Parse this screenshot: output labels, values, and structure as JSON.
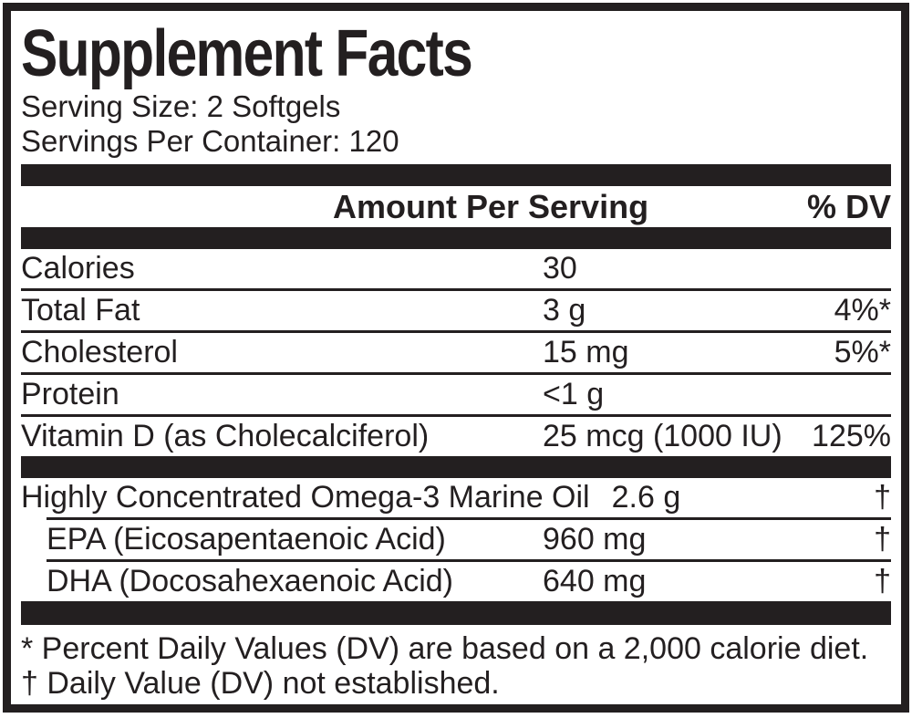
{
  "label": {
    "title": "Supplement Facts",
    "serving_size": "Serving Size: 2 Softgels",
    "servings_per_container": "Servings Per Container: 120",
    "columns": {
      "amount": "Amount Per Serving",
      "dv": "% DV"
    },
    "rows": [
      {
        "name": "Calories",
        "amount": "30",
        "dv": ""
      },
      {
        "name": "Total Fat",
        "amount": "3 g",
        "dv": "4%*"
      },
      {
        "name": "Cholesterol",
        "amount": "15 mg",
        "dv": "5%*"
      },
      {
        "name": "Protein",
        "amount": "<1 g",
        "dv": ""
      },
      {
        "name": "Vitamin D (as Cholecalciferol)",
        "amount": "25 mcg (1000 IU)",
        "dv": "125%"
      }
    ],
    "supplement_rows": [
      {
        "name": "Highly Concentrated Omega-3 Marine Oil",
        "amount": "2.6 g",
        "dv": "†"
      },
      {
        "name": "EPA (Eicosapentaenoic Acid)",
        "amount": "960 mg",
        "dv": "†"
      },
      {
        "name": "DHA (Docosahexaenoic Acid)",
        "amount": "640 mg",
        "dv": "†"
      }
    ],
    "footnotes": [
      "* Percent Daily Values (DV) are based on a 2,000 calorie diet.",
      "† Daily Value (DV) not established."
    ],
    "colors": {
      "ink": "#231f20",
      "bar": "#231f20",
      "background": "#ffffff"
    }
  }
}
